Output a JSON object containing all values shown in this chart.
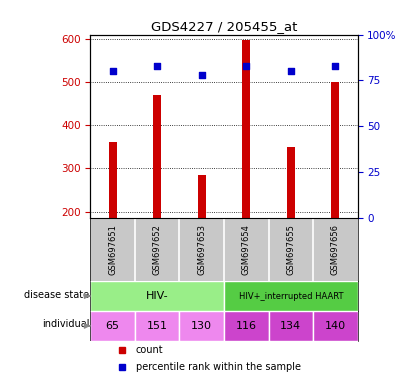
{
  "title": "GDS4227 / 205455_at",
  "samples": [
    "GSM697651",
    "GSM697652",
    "GSM697653",
    "GSM697654",
    "GSM697655",
    "GSM697656"
  ],
  "counts": [
    360,
    470,
    285,
    598,
    350,
    500
  ],
  "percentiles": [
    80,
    83,
    78,
    83,
    80,
    83
  ],
  "ylim_left": [
    185,
    610
  ],
  "ylim_right": [
    0,
    100
  ],
  "yticks_left": [
    200,
    300,
    400,
    500,
    600
  ],
  "yticks_right": [
    0,
    25,
    50,
    75,
    100
  ],
  "bar_color": "#cc0000",
  "dot_color": "#0000cc",
  "disease_state_colors": [
    "#99ee88",
    "#55cc44"
  ],
  "individual": [
    "65",
    "151",
    "130",
    "116",
    "134",
    "140"
  ],
  "individual_colors_hiv_neg": "#ee88ee",
  "individual_colors_hiv_pos": "#cc44cc",
  "xlabel_color_left": "#cc0000",
  "xlabel_color_right": "#0000cc",
  "legend_count_label": "count",
  "legend_pct_label": "percentile rank within the sample",
  "gray_bg": "#c8c8c8"
}
